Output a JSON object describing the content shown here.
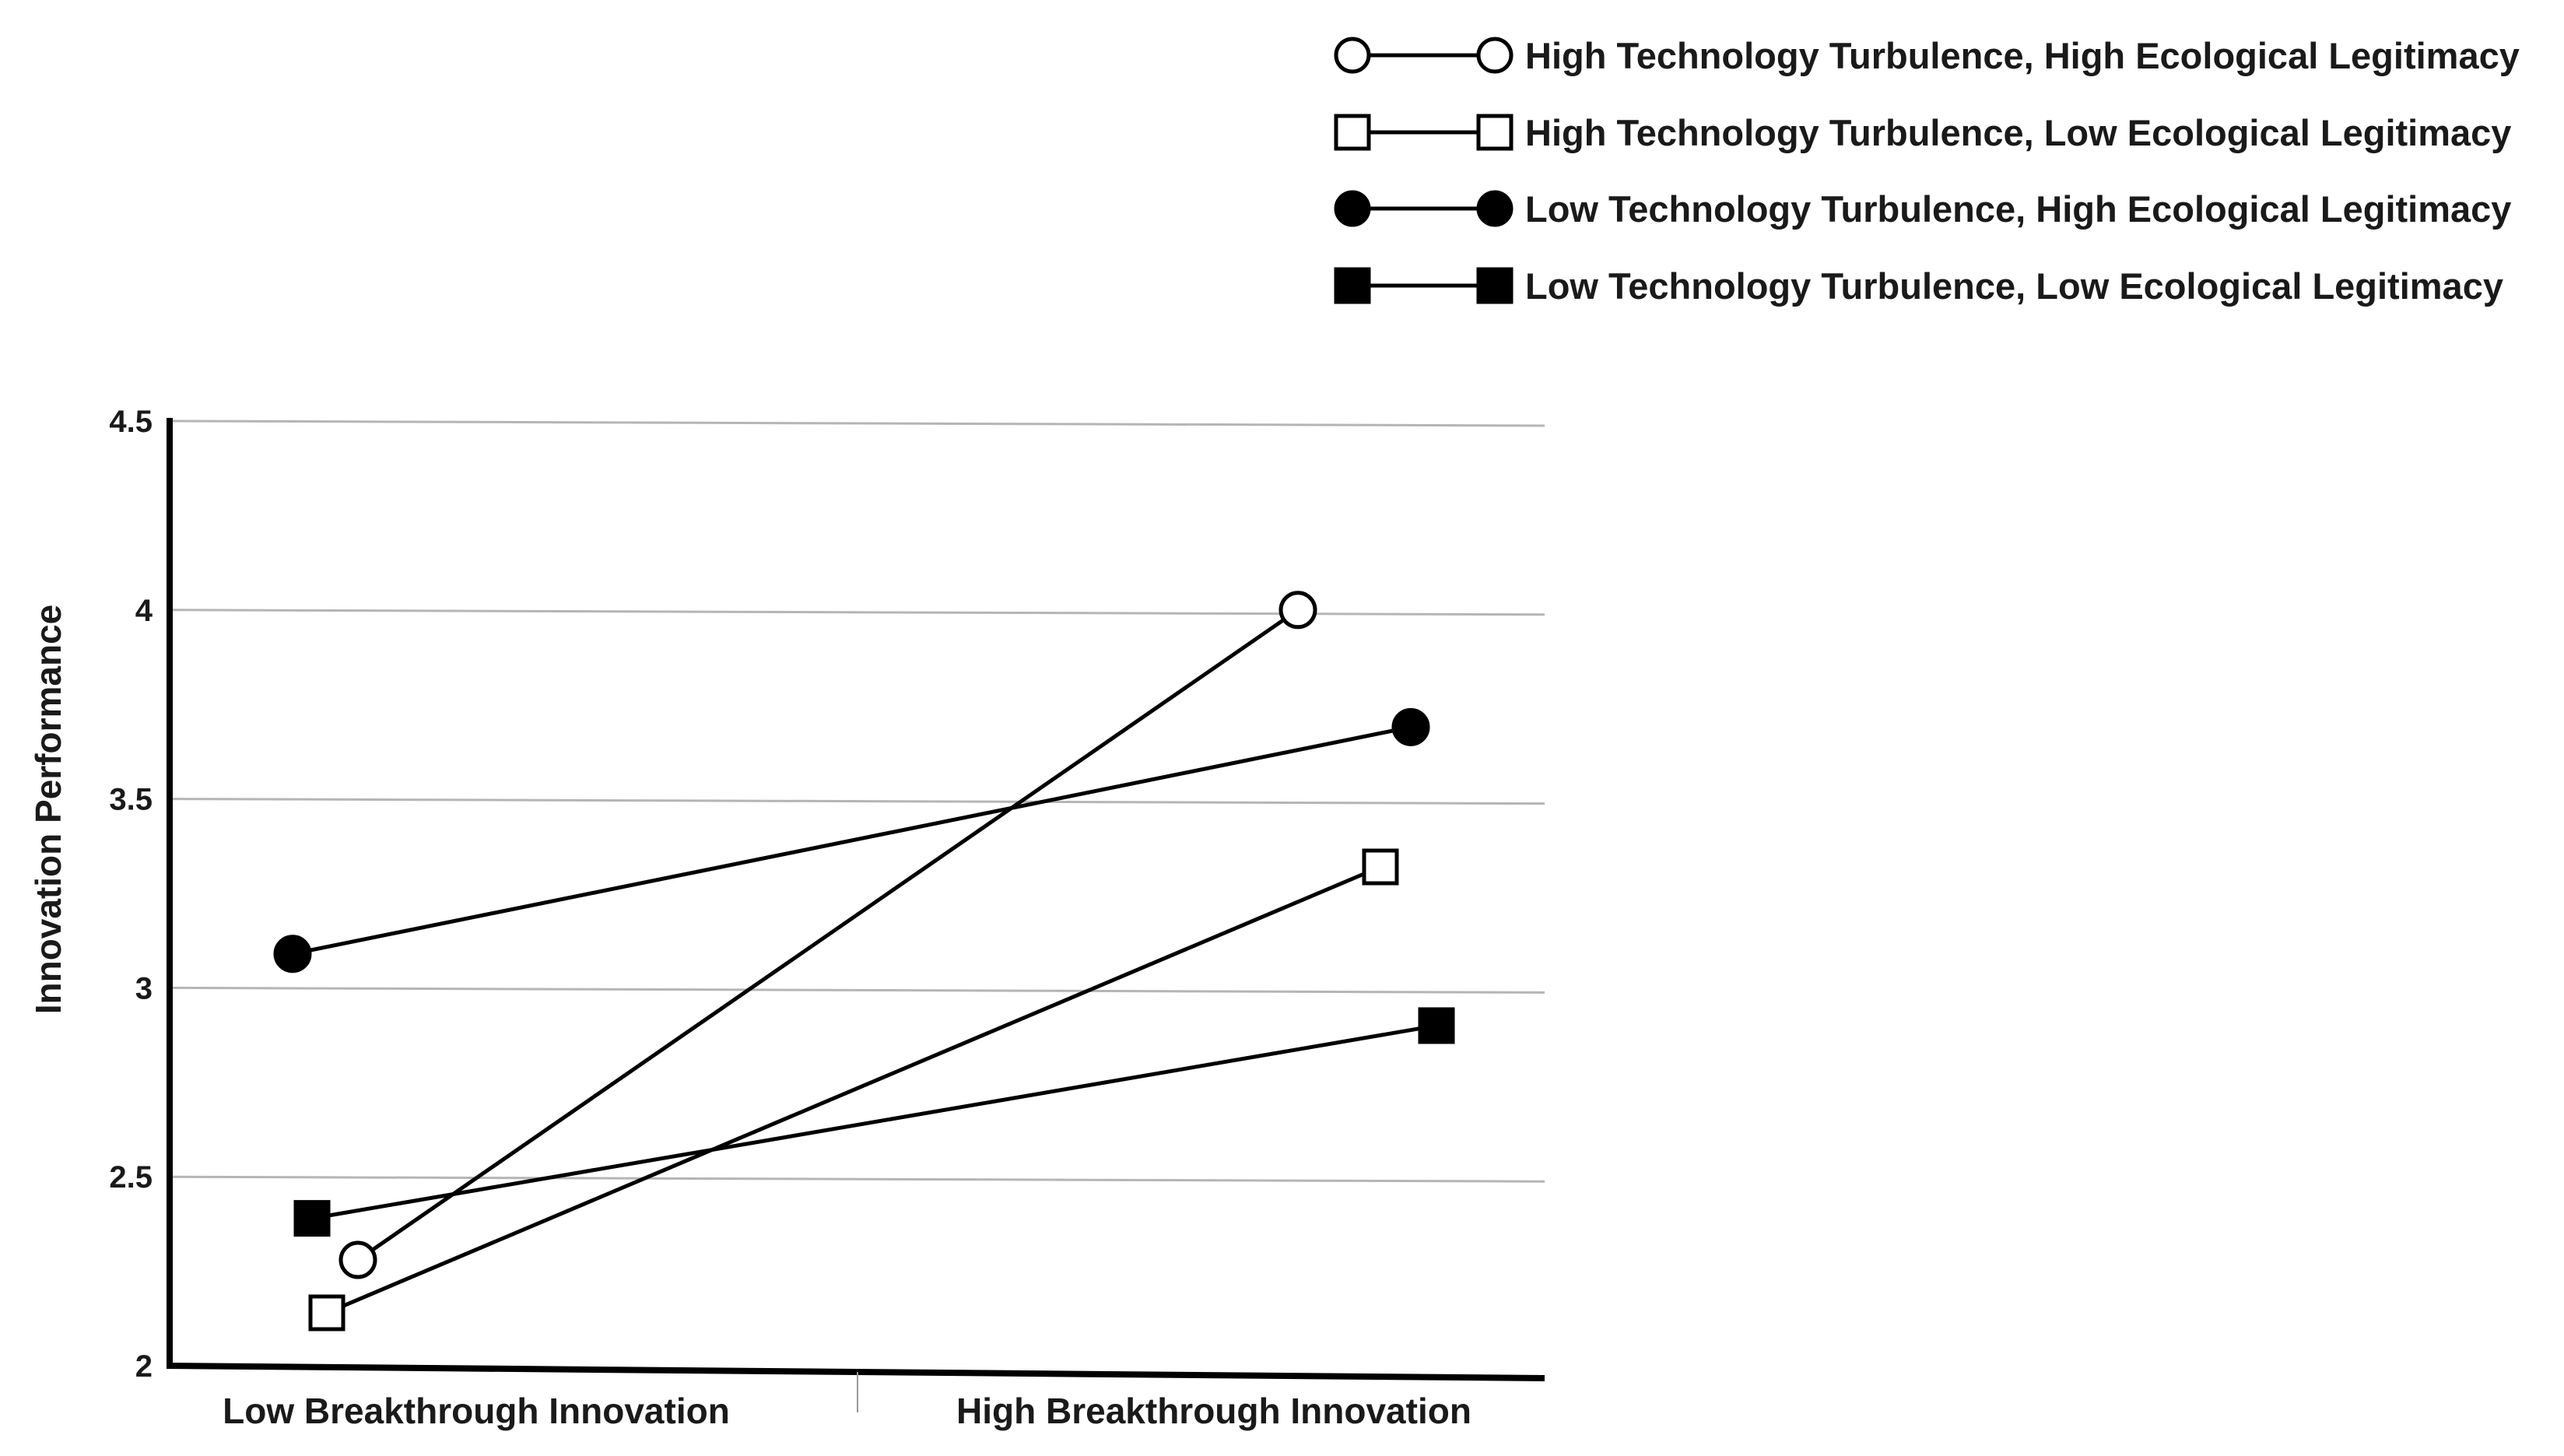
{
  "chart_data": {
    "type": "line",
    "categories": [
      "Low Breakthrough Innovation",
      "High Breakthrough Innovation"
    ],
    "ylabel": "Innovation Performance",
    "ylim": [
      2,
      4.5
    ],
    "yticks": [
      "2",
      "2.5",
      "3",
      "3.5",
      "4",
      "4.5"
    ],
    "grid": true,
    "legend_position": "top-right",
    "series": [
      {
        "name": "High Technology Turbulence, High Ecological Legitimacy",
        "marker": "circle",
        "filled": false,
        "values": [
          2.28,
          4.0
        ]
      },
      {
        "name": "High Technology Turbulence, Low Ecological Legitimacy",
        "marker": "square",
        "filled": false,
        "values": [
          2.14,
          3.32
        ]
      },
      {
        "name": "Low Technology Turbulence, High Ecological Legitimacy",
        "marker": "circle",
        "filled": true,
        "values": [
          3.09,
          3.69
        ]
      },
      {
        "name": "Low Technology Turbulence, Low Ecological Legitimacy",
        "marker": "square",
        "filled": true,
        "values": [
          2.39,
          2.9
        ]
      }
    ]
  }
}
